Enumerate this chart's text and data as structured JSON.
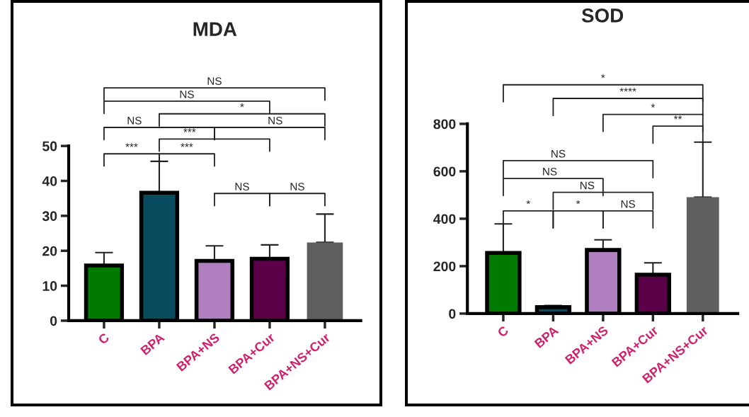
{
  "chart_data": [
    {
      "type": "bar",
      "title": "MDA",
      "categories": [
        "C",
        "BPA",
        "BPA+NS",
        "BPA+Cur",
        "BPA+NS+Cur"
      ],
      "values": [
        15.8,
        36.6,
        17.1,
        17.7,
        22.4
      ],
      "colors": [
        "#007a00",
        "#084a5e",
        "#b07fc0",
        "#5c004a",
        "#5f5f5f"
      ],
      "errors": [
        [
          15.8,
          19.5
        ],
        [
          36.6,
          45.6
        ],
        [
          17.1,
          21.4
        ],
        [
          17.7,
          21.7
        ],
        [
          22.4,
          30.5
        ]
      ],
      "ylim": [
        0,
        50
      ],
      "yticks": [
        0,
        10,
        20,
        30,
        40,
        50
      ],
      "grid": false,
      "annotations": [
        "NS",
        "NS",
        "*",
        "NS",
        "NS",
        "***",
        "***",
        "***",
        "NS",
        "NS"
      ]
    },
    {
      "type": "bar",
      "title": "SOD",
      "categories": [
        "C",
        "BPA",
        "BPA+NS",
        "BPA+Cur",
        "BPA+NS+Cur"
      ],
      "values": [
        256,
        27,
        268,
        164,
        491
      ],
      "colors": [
        "#007a00",
        "#084a5e",
        "#b07fc0",
        "#5c004a",
        "#5f5f5f"
      ],
      "errors": [
        [
          256,
          378
        ],
        [
          27,
          34
        ],
        [
          268,
          311
        ],
        [
          164,
          214
        ],
        [
          491,
          723
        ]
      ],
      "ylim": [
        0,
        800
      ],
      "yticks": [
        0,
        200,
        400,
        600,
        800
      ],
      "grid": false,
      "annotations": [
        "*",
        "****",
        "*",
        "**",
        "NS",
        "NS",
        "NS",
        "*",
        "*",
        "NS"
      ]
    }
  ]
}
